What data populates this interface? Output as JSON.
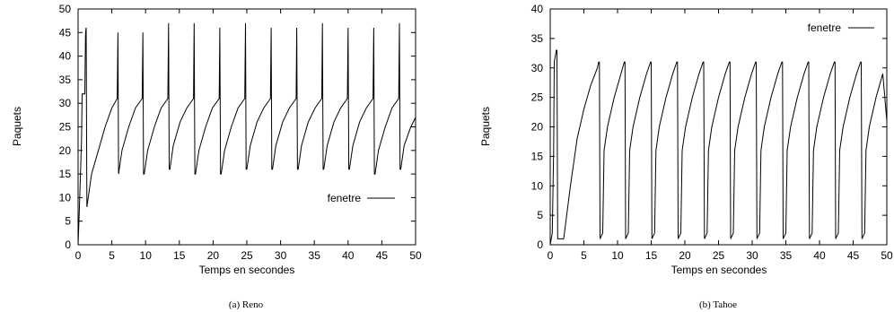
{
  "chart_data": [
    {
      "type": "line",
      "caption": "(a) Reno",
      "xlabel": "Temps en secondes",
      "ylabel": "Paquets",
      "xlim": [
        0,
        50
      ],
      "ylim": [
        0,
        50
      ],
      "xticks": [
        0,
        5,
        10,
        15,
        20,
        25,
        30,
        35,
        40,
        45,
        50
      ],
      "yticks": [
        0,
        5,
        10,
        15,
        20,
        25,
        30,
        35,
        40,
        45,
        50
      ],
      "grid": false,
      "legend_position": "right",
      "series": [
        {
          "name": "fenetre",
          "x": [
            0,
            0.2,
            0.5,
            0.6,
            1.0,
            1.1,
            1.2,
            1.3,
            1.5,
            2.0,
            3.0,
            4.0,
            5.0,
            5.8,
            5.9,
            6.0,
            6.5,
            7.5,
            8.5,
            9.5,
            9.6,
            9.7,
            9.8,
            10.3,
            11.3,
            12.3,
            13.3,
            13.4,
            13.5,
            13.6,
            14.1,
            15.1,
            16.1,
            17.1,
            17.2,
            17.3,
            17.4,
            17.9,
            18.9,
            19.9,
            20.9,
            21.0,
            21.1,
            21.2,
            21.7,
            22.7,
            23.7,
            24.7,
            24.8,
            24.9,
            25.0,
            25.5,
            26.5,
            27.5,
            28.5,
            28.6,
            28.7,
            28.8,
            29.3,
            30.3,
            31.3,
            32.3,
            32.4,
            32.5,
            32.6,
            33.1,
            34.1,
            35.1,
            36.1,
            36.2,
            36.3,
            36.4,
            36.9,
            37.9,
            38.9,
            39.9,
            40.0,
            40.1,
            40.2,
            40.7,
            41.7,
            42.7,
            43.7,
            43.8,
            43.9,
            44.0,
            44.5,
            45.5,
            46.5,
            47.5,
            47.6,
            47.7,
            47.8,
            48.3,
            49.3,
            50.0
          ],
          "y": [
            0,
            8,
            22,
            32,
            32,
            45,
            46,
            8,
            10,
            15,
            20,
            25,
            29,
            31,
            45,
            15,
            20,
            25,
            29,
            31,
            45,
            15,
            15,
            20,
            25,
            29,
            31,
            47,
            16,
            16,
            21,
            26,
            29,
            31,
            47,
            15,
            15,
            20,
            25,
            29,
            31,
            46,
            15,
            15,
            20,
            25,
            29,
            31,
            47,
            16,
            16,
            21,
            26,
            29,
            31,
            46,
            16,
            16,
            21,
            26,
            29,
            31,
            46,
            16,
            16,
            21,
            26,
            29,
            31,
            47,
            16,
            16,
            21,
            26,
            29,
            31,
            46,
            16,
            16,
            21,
            26,
            29,
            31,
            46,
            15,
            15,
            20,
            25,
            29,
            31,
            47,
            16,
            16,
            21,
            25,
            27
          ]
        }
      ]
    },
    {
      "type": "line",
      "caption": "(b) Tahoe",
      "xlabel": "Temps en secondes",
      "ylabel": "Paquets",
      "xlim": [
        0,
        50
      ],
      "ylim": [
        0,
        40
      ],
      "xticks": [
        0,
        5,
        10,
        15,
        20,
        25,
        30,
        35,
        40,
        45,
        50
      ],
      "yticks": [
        0,
        5,
        10,
        15,
        20,
        25,
        30,
        35,
        40
      ],
      "grid": false,
      "legend_position": "top-right",
      "series": [
        {
          "name": "fenetre",
          "x": [
            0,
            0.3,
            0.5,
            0.6,
            0.9,
            1.0,
            1.1,
            2.0,
            3.0,
            4.0,
            5.0,
            6.0,
            7.0,
            7.2,
            7.3,
            7.4,
            7.8,
            8.0,
            8.5,
            9.5,
            10.5,
            11.0,
            11.1,
            11.2,
            11.6,
            11.8,
            12.3,
            13.3,
            14.3,
            14.9,
            15.0,
            15.1,
            15.5,
            15.7,
            16.2,
            17.2,
            18.2,
            18.8,
            18.9,
            19.0,
            19.4,
            19.6,
            20.1,
            21.1,
            22.1,
            22.7,
            22.8,
            22.9,
            23.3,
            23.5,
            24.0,
            25.0,
            26.0,
            26.6,
            26.7,
            26.8,
            27.2,
            27.4,
            27.9,
            28.9,
            29.9,
            30.5,
            30.6,
            30.7,
            31.1,
            31.3,
            31.8,
            32.8,
            33.8,
            34.4,
            34.5,
            34.6,
            35.0,
            35.2,
            35.7,
            36.7,
            37.7,
            38.3,
            38.4,
            38.5,
            38.9,
            39.1,
            39.6,
            40.6,
            41.6,
            42.2,
            42.3,
            42.4,
            42.8,
            43.0,
            43.5,
            44.5,
            45.5,
            46.1,
            46.2,
            46.3,
            46.7,
            46.9,
            47.4,
            48.4,
            49.4,
            50.0
          ],
          "y": [
            0,
            2,
            16,
            31,
            33,
            33,
            1,
            1,
            10,
            18,
            23,
            27,
            30,
            31,
            31,
            1,
            2,
            16,
            20,
            25,
            29,
            31,
            31,
            1,
            2,
            16,
            20,
            25,
            29,
            31,
            31,
            1,
            2,
            16,
            20,
            25,
            29,
            31,
            31,
            1,
            2,
            16,
            20,
            25,
            29,
            31,
            31,
            1,
            2,
            16,
            20,
            25,
            29,
            31,
            31,
            1,
            2,
            16,
            20,
            25,
            29,
            31,
            31,
            1,
            2,
            16,
            20,
            25,
            29,
            31,
            31,
            1,
            2,
            16,
            20,
            25,
            29,
            31,
            31,
            1,
            2,
            16,
            20,
            25,
            29,
            31,
            31,
            1,
            2,
            16,
            20,
            25,
            29,
            31,
            31,
            1,
            2,
            16,
            20,
            25,
            29,
            21
          ]
        }
      ]
    }
  ]
}
